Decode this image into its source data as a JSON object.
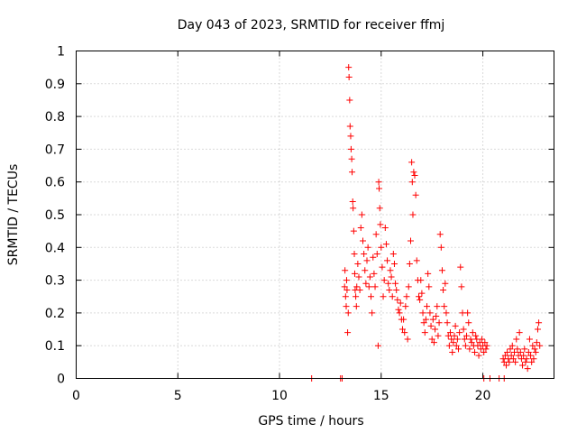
{
  "chart_data": {
    "type": "scatter",
    "title": "Day 043 of 2023, SRMTID for receiver ffmj",
    "xlabel": "GPS time / hours",
    "ylabel": "SRMTID / TECUs",
    "xlim": [
      0,
      23.5
    ],
    "ylim": [
      0,
      1
    ],
    "grid": true,
    "marker": "+",
    "xticks": [
      "0",
      "5",
      "10",
      "15",
      "20"
    ],
    "yticks": [
      "0",
      "0.1",
      "0.2",
      "0.3",
      "0.4",
      "0.5",
      "0.6",
      "0.7",
      "0.8",
      "0.9",
      "1"
    ],
    "color": "#ff0000",
    "series": [
      {
        "name": "SRMTID",
        "points": [
          [
            11.58,
            0.0
          ],
          [
            13.0,
            0.0
          ],
          [
            13.08,
            0.0
          ],
          [
            20.05,
            0.0
          ],
          [
            20.35,
            0.0
          ],
          [
            20.8,
            0.0
          ],
          [
            21.05,
            0.0
          ],
          [
            13.2,
            0.28
          ],
          [
            13.22,
            0.33
          ],
          [
            13.25,
            0.25
          ],
          [
            13.28,
            0.22
          ],
          [
            13.3,
            0.3
          ],
          [
            13.32,
            0.27
          ],
          [
            13.35,
            0.14
          ],
          [
            13.38,
            0.2
          ],
          [
            13.4,
            0.95
          ],
          [
            13.42,
            0.92
          ],
          [
            13.45,
            0.85
          ],
          [
            13.47,
            0.77
          ],
          [
            13.5,
            0.74
          ],
          [
            13.52,
            0.7
          ],
          [
            13.55,
            0.67
          ],
          [
            13.57,
            0.63
          ],
          [
            13.6,
            0.54
          ],
          [
            13.62,
            0.52
          ],
          [
            13.65,
            0.45
          ],
          [
            13.68,
            0.38
          ],
          [
            13.7,
            0.32
          ],
          [
            13.72,
            0.27
          ],
          [
            13.75,
            0.25
          ],
          [
            13.78,
            0.22
          ],
          [
            13.8,
            0.28
          ],
          [
            13.85,
            0.35
          ],
          [
            13.9,
            0.31
          ],
          [
            13.95,
            0.27
          ],
          [
            14.0,
            0.46
          ],
          [
            14.05,
            0.5
          ],
          [
            14.1,
            0.42
          ],
          [
            14.15,
            0.38
          ],
          [
            14.2,
            0.33
          ],
          [
            14.25,
            0.29
          ],
          [
            14.3,
            0.36
          ],
          [
            14.35,
            0.4
          ],
          [
            14.4,
            0.28
          ],
          [
            14.45,
            0.31
          ],
          [
            14.5,
            0.25
          ],
          [
            14.55,
            0.2
          ],
          [
            14.6,
            0.37
          ],
          [
            14.65,
            0.32
          ],
          [
            14.7,
            0.28
          ],
          [
            14.75,
            0.44
          ],
          [
            14.8,
            0.38
          ],
          [
            14.85,
            0.1
          ],
          [
            14.88,
            0.6
          ],
          [
            14.9,
            0.58
          ],
          [
            14.93,
            0.52
          ],
          [
            14.96,
            0.47
          ],
          [
            15.0,
            0.4
          ],
          [
            15.05,
            0.34
          ],
          [
            15.1,
            0.25
          ],
          [
            15.15,
            0.3
          ],
          [
            15.2,
            0.46
          ],
          [
            15.25,
            0.41
          ],
          [
            15.3,
            0.36
          ],
          [
            15.35,
            0.29
          ],
          [
            15.4,
            0.27
          ],
          [
            15.45,
            0.33
          ],
          [
            15.5,
            0.31
          ],
          [
            15.55,
            0.25
          ],
          [
            15.6,
            0.38
          ],
          [
            15.65,
            0.35
          ],
          [
            15.7,
            0.29
          ],
          [
            15.75,
            0.27
          ],
          [
            15.8,
            0.24
          ],
          [
            15.85,
            0.21
          ],
          [
            15.9,
            0.2
          ],
          [
            15.95,
            0.23
          ],
          [
            16.0,
            0.18
          ],
          [
            16.05,
            0.15
          ],
          [
            16.1,
            0.18
          ],
          [
            16.15,
            0.14
          ],
          [
            16.2,
            0.22
          ],
          [
            16.25,
            0.25
          ],
          [
            16.3,
            0.12
          ],
          [
            16.35,
            0.28
          ],
          [
            16.4,
            0.35
          ],
          [
            16.45,
            0.42
          ],
          [
            16.5,
            0.66
          ],
          [
            16.53,
            0.6
          ],
          [
            16.56,
            0.5
          ],
          [
            16.6,
            0.63
          ],
          [
            16.65,
            0.62
          ],
          [
            16.7,
            0.56
          ],
          [
            16.75,
            0.36
          ],
          [
            16.8,
            0.3
          ],
          [
            16.85,
            0.25
          ],
          [
            16.9,
            0.24
          ],
          [
            16.95,
            0.3
          ],
          [
            17.0,
            0.26
          ],
          [
            17.05,
            0.2
          ],
          [
            17.1,
            0.17
          ],
          [
            17.15,
            0.14
          ],
          [
            17.2,
            0.18
          ],
          [
            17.25,
            0.22
          ],
          [
            17.3,
            0.32
          ],
          [
            17.35,
            0.28
          ],
          [
            17.4,
            0.2
          ],
          [
            17.45,
            0.16
          ],
          [
            17.5,
            0.12
          ],
          [
            17.55,
            0.18
          ],
          [
            17.6,
            0.11
          ],
          [
            17.65,
            0.15
          ],
          [
            17.7,
            0.19
          ],
          [
            17.75,
            0.22
          ],
          [
            17.8,
            0.13
          ],
          [
            17.85,
            0.17
          ],
          [
            17.9,
            0.44
          ],
          [
            17.95,
            0.4
          ],
          [
            18.0,
            0.33
          ],
          [
            18.05,
            0.27
          ],
          [
            18.1,
            0.22
          ],
          [
            18.15,
            0.29
          ],
          [
            18.2,
            0.2
          ],
          [
            18.25,
            0.17
          ],
          [
            18.3,
            0.13
          ],
          [
            18.35,
            0.1
          ],
          [
            18.4,
            0.14
          ],
          [
            18.45,
            0.12
          ],
          [
            18.5,
            0.08
          ],
          [
            18.55,
            0.11
          ],
          [
            18.6,
            0.13
          ],
          [
            18.65,
            0.16
          ],
          [
            18.7,
            0.1
          ],
          [
            18.75,
            0.12
          ],
          [
            18.8,
            0.09
          ],
          [
            18.85,
            0.14
          ],
          [
            18.9,
            0.34
          ],
          [
            18.95,
            0.28
          ],
          [
            19.0,
            0.2
          ],
          [
            19.05,
            0.15
          ],
          [
            19.1,
            0.12
          ],
          [
            19.15,
            0.1
          ],
          [
            19.2,
            0.13
          ],
          [
            19.25,
            0.2
          ],
          [
            19.3,
            0.17
          ],
          [
            19.35,
            0.09
          ],
          [
            19.4,
            0.12
          ],
          [
            19.45,
            0.11
          ],
          [
            19.5,
            0.14
          ],
          [
            19.55,
            0.1
          ],
          [
            19.6,
            0.08
          ],
          [
            19.65,
            0.13
          ],
          [
            19.7,
            0.12
          ],
          [
            19.75,
            0.1
          ],
          [
            19.8,
            0.07
          ],
          [
            19.85,
            0.11
          ],
          [
            19.9,
            0.09
          ],
          [
            19.95,
            0.12
          ],
          [
            20.0,
            0.1
          ],
          [
            20.05,
            0.08
          ],
          [
            20.1,
            0.11
          ],
          [
            20.15,
            0.09
          ],
          [
            20.2,
            0.1
          ],
          [
            21.0,
            0.06
          ],
          [
            21.05,
            0.05
          ],
          [
            21.1,
            0.07
          ],
          [
            21.15,
            0.04
          ],
          [
            21.2,
            0.08
          ],
          [
            21.25,
            0.06
          ],
          [
            21.3,
            0.05
          ],
          [
            21.35,
            0.09
          ],
          [
            21.4,
            0.07
          ],
          [
            21.45,
            0.1
          ],
          [
            21.5,
            0.06
          ],
          [
            21.55,
            0.08
          ],
          [
            21.6,
            0.05
          ],
          [
            21.65,
            0.12
          ],
          [
            21.7,
            0.09
          ],
          [
            21.75,
            0.07
          ],
          [
            21.8,
            0.14
          ],
          [
            21.85,
            0.08
          ],
          [
            21.9,
            0.06
          ],
          [
            21.95,
            0.04
          ],
          [
            22.0,
            0.07
          ],
          [
            22.05,
            0.09
          ],
          [
            22.1,
            0.05
          ],
          [
            22.15,
            0.06
          ],
          [
            22.2,
            0.03
          ],
          [
            22.25,
            0.08
          ],
          [
            22.3,
            0.12
          ],
          [
            22.35,
            0.07
          ],
          [
            22.4,
            0.05
          ],
          [
            22.45,
            0.1
          ],
          [
            22.5,
            0.06
          ],
          [
            22.55,
            0.09
          ],
          [
            22.6,
            0.08
          ],
          [
            22.65,
            0.11
          ],
          [
            22.7,
            0.15
          ],
          [
            22.75,
            0.17
          ],
          [
            22.8,
            0.1
          ]
        ]
      }
    ]
  }
}
